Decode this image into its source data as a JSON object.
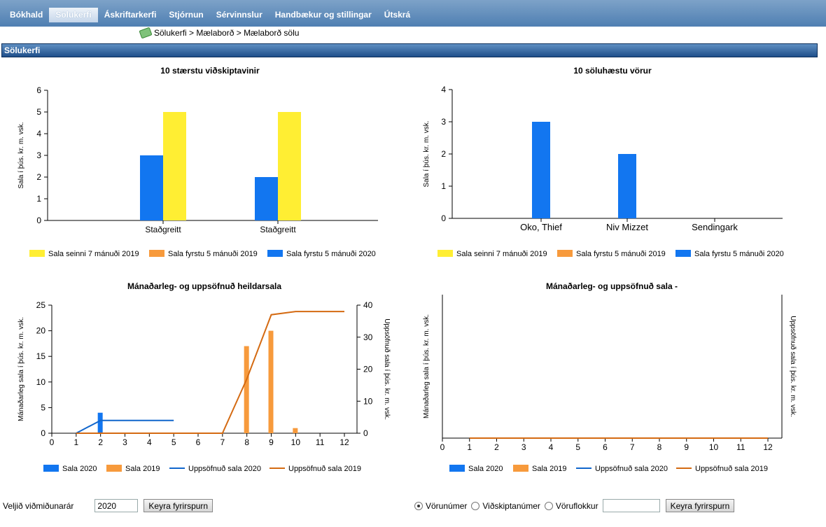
{
  "nav": {
    "items": [
      {
        "label": "Bókhald",
        "active": false
      },
      {
        "label": "Sölukerfi",
        "active": true
      },
      {
        "label": "Áskriftarkerfi",
        "active": false
      },
      {
        "label": "Stjórnun",
        "active": false
      },
      {
        "label": "Sérvinnslur",
        "active": false
      },
      {
        "label": "Handbækur og stillingar",
        "active": false
      },
      {
        "label": "Útskrá",
        "active": false
      }
    ]
  },
  "breadcrumb": "Sölukerfi > Mælaborð > Mælaborð sölu",
  "section_title": "Sölukerfi",
  "colors": {
    "yellow": "#ffee33",
    "orange": "#f79a3c",
    "blue": "#1276f0",
    "dark_orange": "#d46a12",
    "dark_blue": "#1166cc"
  },
  "chart_data": [
    {
      "type": "bar",
      "title": "10 stærstu viðskiptavinir",
      "ylabel": "Sala í þús. kr. m. vsk.",
      "categories": [
        "Staðgreitt",
        "Staðgreitt"
      ],
      "ylim": [
        0,
        6
      ],
      "yticks": [
        "0",
        "1",
        "2",
        "3",
        "4",
        "5",
        "6"
      ],
      "series": [
        {
          "name": "Sala seinni 7 mánuði 2019",
          "values": [
            5,
            5
          ]
        },
        {
          "name": "Sala fyrstu 5 mánuði 2019",
          "values": [
            0,
            0
          ]
        },
        {
          "name": "Sala fyrstu 5 mánuði 2020",
          "values": [
            3,
            2
          ]
        }
      ],
      "legend": "bottom"
    },
    {
      "type": "bar",
      "title": "10 söluhæstu vörur",
      "ylabel": "Sala í þús. kr. m. vsk.",
      "categories": [
        "Oko, Thief",
        "Niv Mizzet",
        "Sendingark"
      ],
      "ylim": [
        0,
        4
      ],
      "yticks": [
        "0",
        "1",
        "2",
        "3",
        "4"
      ],
      "series": [
        {
          "name": "Sala seinni 7 mánuði 2019",
          "values": [
            0,
            0,
            0
          ]
        },
        {
          "name": "Sala fyrstu 5 mánuði 2019",
          "values": [
            0,
            0,
            0
          ]
        },
        {
          "name": "Sala fyrstu 5 mánuði 2020",
          "values": [
            3,
            2,
            0
          ]
        }
      ],
      "legend": "bottom"
    },
    {
      "type": "bar",
      "title": "Mánaðarleg- og uppsöfnuð heildarsala",
      "ylabel": "Mánaðarleg sala í þús. kr. m. vsk.",
      "y2label": "Uppsöfnuð sala í þús. kr. m. vsk.",
      "x": [
        "0",
        "1",
        "2",
        "3",
        "4",
        "5",
        "6",
        "7",
        "8",
        "9",
        "10",
        "11",
        "12"
      ],
      "ylim": [
        0,
        25
      ],
      "yticks": [
        "0",
        "5",
        "10",
        "15",
        "20",
        "25"
      ],
      "y2lim": [
        0,
        40
      ],
      "y2ticks": [
        "0",
        "10",
        "20",
        "30",
        "40"
      ],
      "series": [
        {
          "name": "Sala 2020",
          "kind": "bar",
          "points": [
            [
              2,
              4
            ]
          ]
        },
        {
          "name": "Sala 2019",
          "kind": "bar",
          "points": [
            [
              8,
              17
            ],
            [
              9,
              20
            ],
            [
              10,
              1
            ]
          ]
        },
        {
          "name": "Uppsöfnuð sala 2020",
          "kind": "line",
          "axis": "y2",
          "points": [
            [
              1,
              0
            ],
            [
              2,
              4
            ],
            [
              3,
              4
            ],
            [
              4,
              4
            ],
            [
              5,
              4
            ]
          ]
        },
        {
          "name": "Uppsöfnuð sala 2019",
          "kind": "line",
          "axis": "y2",
          "points": [
            [
              1,
              0
            ],
            [
              2,
              0
            ],
            [
              3,
              0
            ],
            [
              4,
              0
            ],
            [
              5,
              0
            ],
            [
              6,
              0
            ],
            [
              7,
              0
            ],
            [
              8,
              17
            ],
            [
              9,
              37
            ],
            [
              10,
              38
            ],
            [
              11,
              38
            ],
            [
              12,
              38
            ]
          ]
        }
      ],
      "legend": "bottom"
    },
    {
      "type": "bar",
      "title": "Mánaðarleg- og uppsöfnuð sala  -",
      "ylabel": "Mánaðarleg sala í þús. kr. m. vsk.",
      "y2label": "Uppsöfnuð sala í þús. kr. m. vsk.",
      "x": [
        "0",
        "1",
        "2",
        "3",
        "4",
        "5",
        "6",
        "7",
        "8",
        "9",
        "10",
        "11",
        "12"
      ],
      "series": [
        {
          "name": "Sala 2020",
          "kind": "bar",
          "points": []
        },
        {
          "name": "Sala 2019",
          "kind": "bar",
          "points": []
        },
        {
          "name": "Uppsöfnuð sala 2020",
          "kind": "line",
          "points": []
        },
        {
          "name": "Uppsöfnuð sala 2019",
          "kind": "line",
          "points": [
            [
              1,
              0
            ],
            [
              12,
              0
            ]
          ]
        }
      ],
      "legend": "bottom"
    }
  ],
  "left_form": {
    "label": "Veljið viðmiðunarár",
    "year_value": "2020",
    "button": "Keyra fyrirspurn"
  },
  "right_form": {
    "options": [
      {
        "label": "Vörunúmer",
        "checked": true
      },
      {
        "label": "Viðskiptanúmer",
        "checked": false
      },
      {
        "label": "Vöruflokkur",
        "checked": false
      }
    ],
    "input_value": "",
    "button": "Keyra fyrirspurn"
  }
}
